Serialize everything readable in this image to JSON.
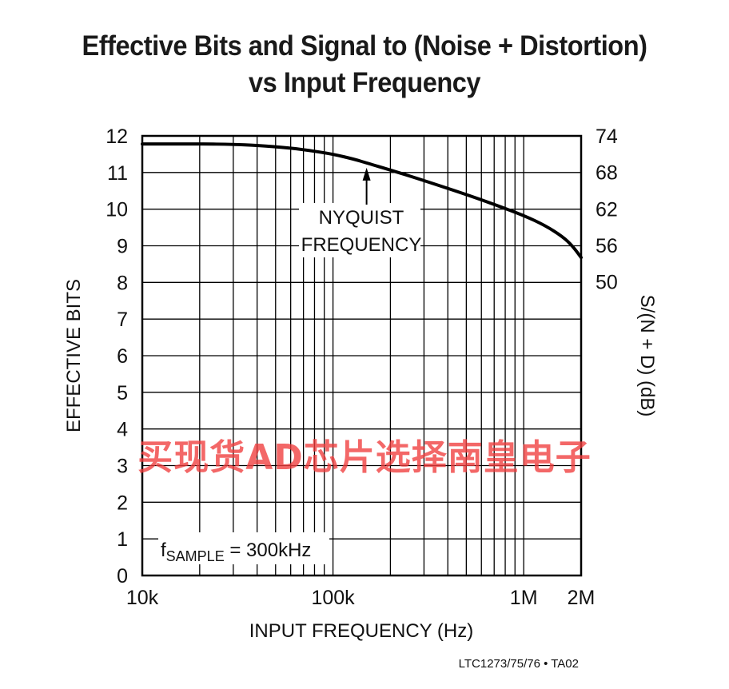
{
  "chart_data": {
    "type": "line",
    "title": "Effective Bits and Signal to (Noise + Distortion)",
    "title_line2": "vs Input Frequency",
    "xlabel": "INPUT FREQUENCY (Hz)",
    "ylabel": "EFFECTIVE BITS",
    "y2label": "S/(N + D) (dB)",
    "x_scale": "log",
    "xlim": [
      10000,
      2000000
    ],
    "ylim": [
      0,
      12
    ],
    "x_ticks": [
      {
        "value": 10000,
        "label": "10k"
      },
      {
        "value": 100000,
        "label": "100k"
      },
      {
        "value": 1000000,
        "label": "1M"
      },
      {
        "value": 2000000,
        "label": "2M"
      }
    ],
    "y_ticks": [
      "0",
      "1",
      "2",
      "3",
      "4",
      "5",
      "6",
      "7",
      "8",
      "9",
      "10",
      "11",
      "12"
    ],
    "y2_ticks": [
      {
        "value": 74,
        "label": "74"
      },
      {
        "value": 68,
        "label": "68"
      },
      {
        "value": 62,
        "label": "62"
      },
      {
        "value": 56,
        "label": "56"
      },
      {
        "value": 50,
        "label": "50"
      }
    ],
    "grid": true,
    "series": [
      {
        "x": [
          10000,
          20000,
          30000,
          40000,
          60000,
          80000,
          100000,
          130000,
          150000,
          200000,
          300000,
          500000,
          700000,
          1000000,
          1300000,
          1600000,
          1800000,
          2000000
        ],
        "y": [
          11.78,
          11.78,
          11.77,
          11.74,
          11.67,
          11.58,
          11.5,
          11.36,
          11.26,
          11.07,
          10.78,
          10.4,
          10.13,
          9.83,
          9.55,
          9.25,
          9.0,
          8.68
        ]
      }
    ],
    "annotations": {
      "nyquist_line1": "NYQUIST",
      "nyquist_line2": "FREQUENCY",
      "nyquist_x": 150000,
      "nyquist_y": 11.26,
      "fsample_prefix": "f",
      "fsample_sub": "SAMPLE",
      "fsample_suffix": " = 300kHz"
    }
  },
  "watermark": "买现货AD芯片选择南皇电子",
  "footer": "LTC1273/75/76 • TA02",
  "colors": {
    "curve": "#000000",
    "grid": "#000000",
    "watermark": "#f03c3c"
  }
}
